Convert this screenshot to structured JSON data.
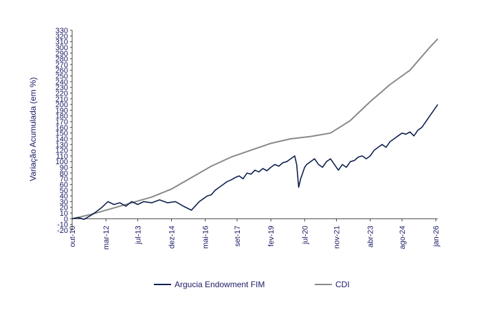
{
  "chart_data": {
    "type": "line",
    "title": "",
    "ylabel": "Variação Acumulada (em %)",
    "xlabel": "",
    "ylim": [
      -20,
      330
    ],
    "yticks": [
      -20,
      -10,
      0,
      10,
      20,
      30,
      40,
      50,
      60,
      70,
      80,
      90,
      100,
      110,
      120,
      130,
      140,
      150,
      160,
      170,
      180,
      190,
      200,
      210,
      220,
      230,
      240,
      250,
      260,
      270,
      280,
      290,
      300,
      310,
      320,
      330
    ],
    "xlim": [
      0,
      184
    ],
    "x_tick_labels": [
      "out-10",
      "mar-12",
      "jul-13",
      "dez-14",
      "mai-16",
      "set-17",
      "fev-19",
      "jul-20",
      "nov-21",
      "abr-23",
      "ago-24",
      "jan-26"
    ],
    "x_tick_positions": [
      0,
      17,
      33,
      50,
      67,
      83,
      100,
      117,
      133,
      150,
      166,
      183
    ],
    "grid": false,
    "legend_position": "bottom",
    "series": [
      {
        "name": "Argucia Endowment FIM",
        "color": "#0d1e4d",
        "x": [
          0,
          3,
          6,
          9,
          12,
          15,
          18,
          21,
          24,
          27,
          30,
          33,
          36,
          40,
          44,
          48,
          52,
          56,
          60,
          64,
          66,
          68,
          70,
          72,
          74,
          76,
          78,
          80,
          82,
          84,
          86,
          88,
          90,
          92,
          94,
          96,
          98,
          100,
          102,
          104,
          106,
          108,
          110,
          112,
          113,
          114,
          115,
          116,
          117,
          118,
          120,
          122,
          124,
          126,
          128,
          130,
          132,
          134,
          136,
          138,
          140,
          142,
          144,
          146,
          148,
          150,
          152,
          154,
          156,
          158,
          160,
          162,
          164,
          166,
          168,
          170,
          172,
          174,
          176,
          178,
          180,
          182,
          184
        ],
        "values": [
          0,
          2,
          -1,
          5,
          12,
          20,
          30,
          25,
          28,
          22,
          30,
          25,
          30,
          28,
          33,
          28,
          30,
          22,
          15,
          30,
          35,
          40,
          42,
          50,
          55,
          60,
          65,
          68,
          72,
          75,
          70,
          80,
          78,
          85,
          82,
          88,
          84,
          90,
          95,
          92,
          98,
          100,
          105,
          110,
          95,
          55,
          70,
          80,
          90,
          95,
          100,
          105,
          95,
          90,
          100,
          105,
          95,
          85,
          95,
          90,
          100,
          102,
          108,
          110,
          105,
          110,
          120,
          125,
          130,
          125,
          135,
          140,
          145,
          150,
          148,
          152,
          145,
          155,
          160,
          170,
          180,
          190,
          200
        ]
      },
      {
        "name": "CDI",
        "color": "#888888",
        "x": [
          0,
          10,
          20,
          30,
          40,
          50,
          60,
          70,
          80,
          90,
          100,
          110,
          120,
          130,
          140,
          150,
          160,
          170,
          180,
          184
        ],
        "values": [
          0,
          8,
          18,
          28,
          38,
          52,
          72,
          92,
          108,
          120,
          132,
          140,
          144,
          150,
          172,
          205,
          235,
          260,
          300,
          315
        ]
      }
    ]
  }
}
